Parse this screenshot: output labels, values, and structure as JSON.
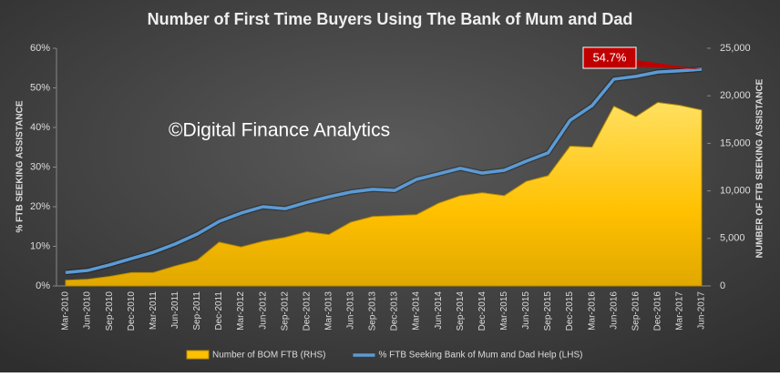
{
  "chart_data": {
    "type": "line",
    "title": "Number of First Time Buyers Using The Bank of Mum and Dad",
    "watermark": "©Digital Finance Analytics",
    "annotation": "54.7%",
    "y_label": "% FTB SEEKING ASSISTANCE",
    "y2_label": "NUMBER OF FTB SEEKING ASSISTANCE",
    "categories": [
      "Mar-2010",
      "Jun-2010",
      "Sep-2010",
      "Dec-2010",
      "Mar-2011",
      "Jun-2011",
      "Sep-2011",
      "Dec-2011",
      "Mar-2012",
      "Jun-2012",
      "Sep-2012",
      "Dec-2012",
      "Mar-2013",
      "Jun-2013",
      "Sep-2013",
      "Dec-2013",
      "Mar-2014",
      "Jun-2014",
      "Sep-2014",
      "Dec-2014",
      "Mar-2015",
      "Jun-2015",
      "Sep-2015",
      "Dec-2015",
      "Mar-2016",
      "Jun-2016",
      "Sep-2016",
      "Dec-2016",
      "Mar-2017",
      "Jun-2017"
    ],
    "series": [
      {
        "name": "Number of BOM FTB (RHS)",
        "type": "area",
        "axis": "y2",
        "color": "#ffc000",
        "values": [
          600,
          700,
          1000,
          1400,
          1400,
          2100,
          2700,
          4600,
          4100,
          4700,
          5100,
          5700,
          5400,
          6700,
          7300,
          7400,
          7500,
          8700,
          9500,
          9800,
          9500,
          11000,
          11600,
          14700,
          14600,
          18900,
          17800,
          19300,
          19000,
          18500
        ]
      },
      {
        "name": "% FTB Seeking Bank of Mum and Dad Help (LHS)",
        "type": "line",
        "axis": "y",
        "color": "#5b9bd5",
        "values": [
          3.4,
          3.9,
          5.3,
          6.9,
          8.5,
          10.6,
          13.1,
          16.3,
          18.4,
          20.0,
          19.5,
          21.1,
          22.5,
          23.7,
          24.4,
          24.1,
          26.9,
          28.3,
          29.7,
          28.5,
          29.2,
          31.5,
          33.6,
          41.8,
          45.5,
          52.2,
          52.9,
          54.0,
          54.3,
          54.7
        ]
      }
    ],
    "ylim": [
      0,
      60
    ],
    "yticks": [
      {
        "value": 0,
        "label": "0%"
      },
      {
        "value": 10,
        "label": "10%"
      },
      {
        "value": 20,
        "label": "20%"
      },
      {
        "value": 30,
        "label": "30%"
      },
      {
        "value": 40,
        "label": "40%"
      },
      {
        "value": 50,
        "label": "50%"
      },
      {
        "value": 60,
        "label": "60%"
      }
    ],
    "y2lim": [
      0,
      25000
    ],
    "y2ticks": [
      0,
      {
        "value": 5000,
        "label": "5,000"
      },
      {
        "value": 10000,
        "label": "10,000"
      },
      {
        "value": 15000,
        "label": "15,000"
      },
      {
        "value": 20000,
        "label": "20,000"
      },
      {
        "value": 25000,
        "label": "25,000"
      }
    ],
    "grid": false
  }
}
